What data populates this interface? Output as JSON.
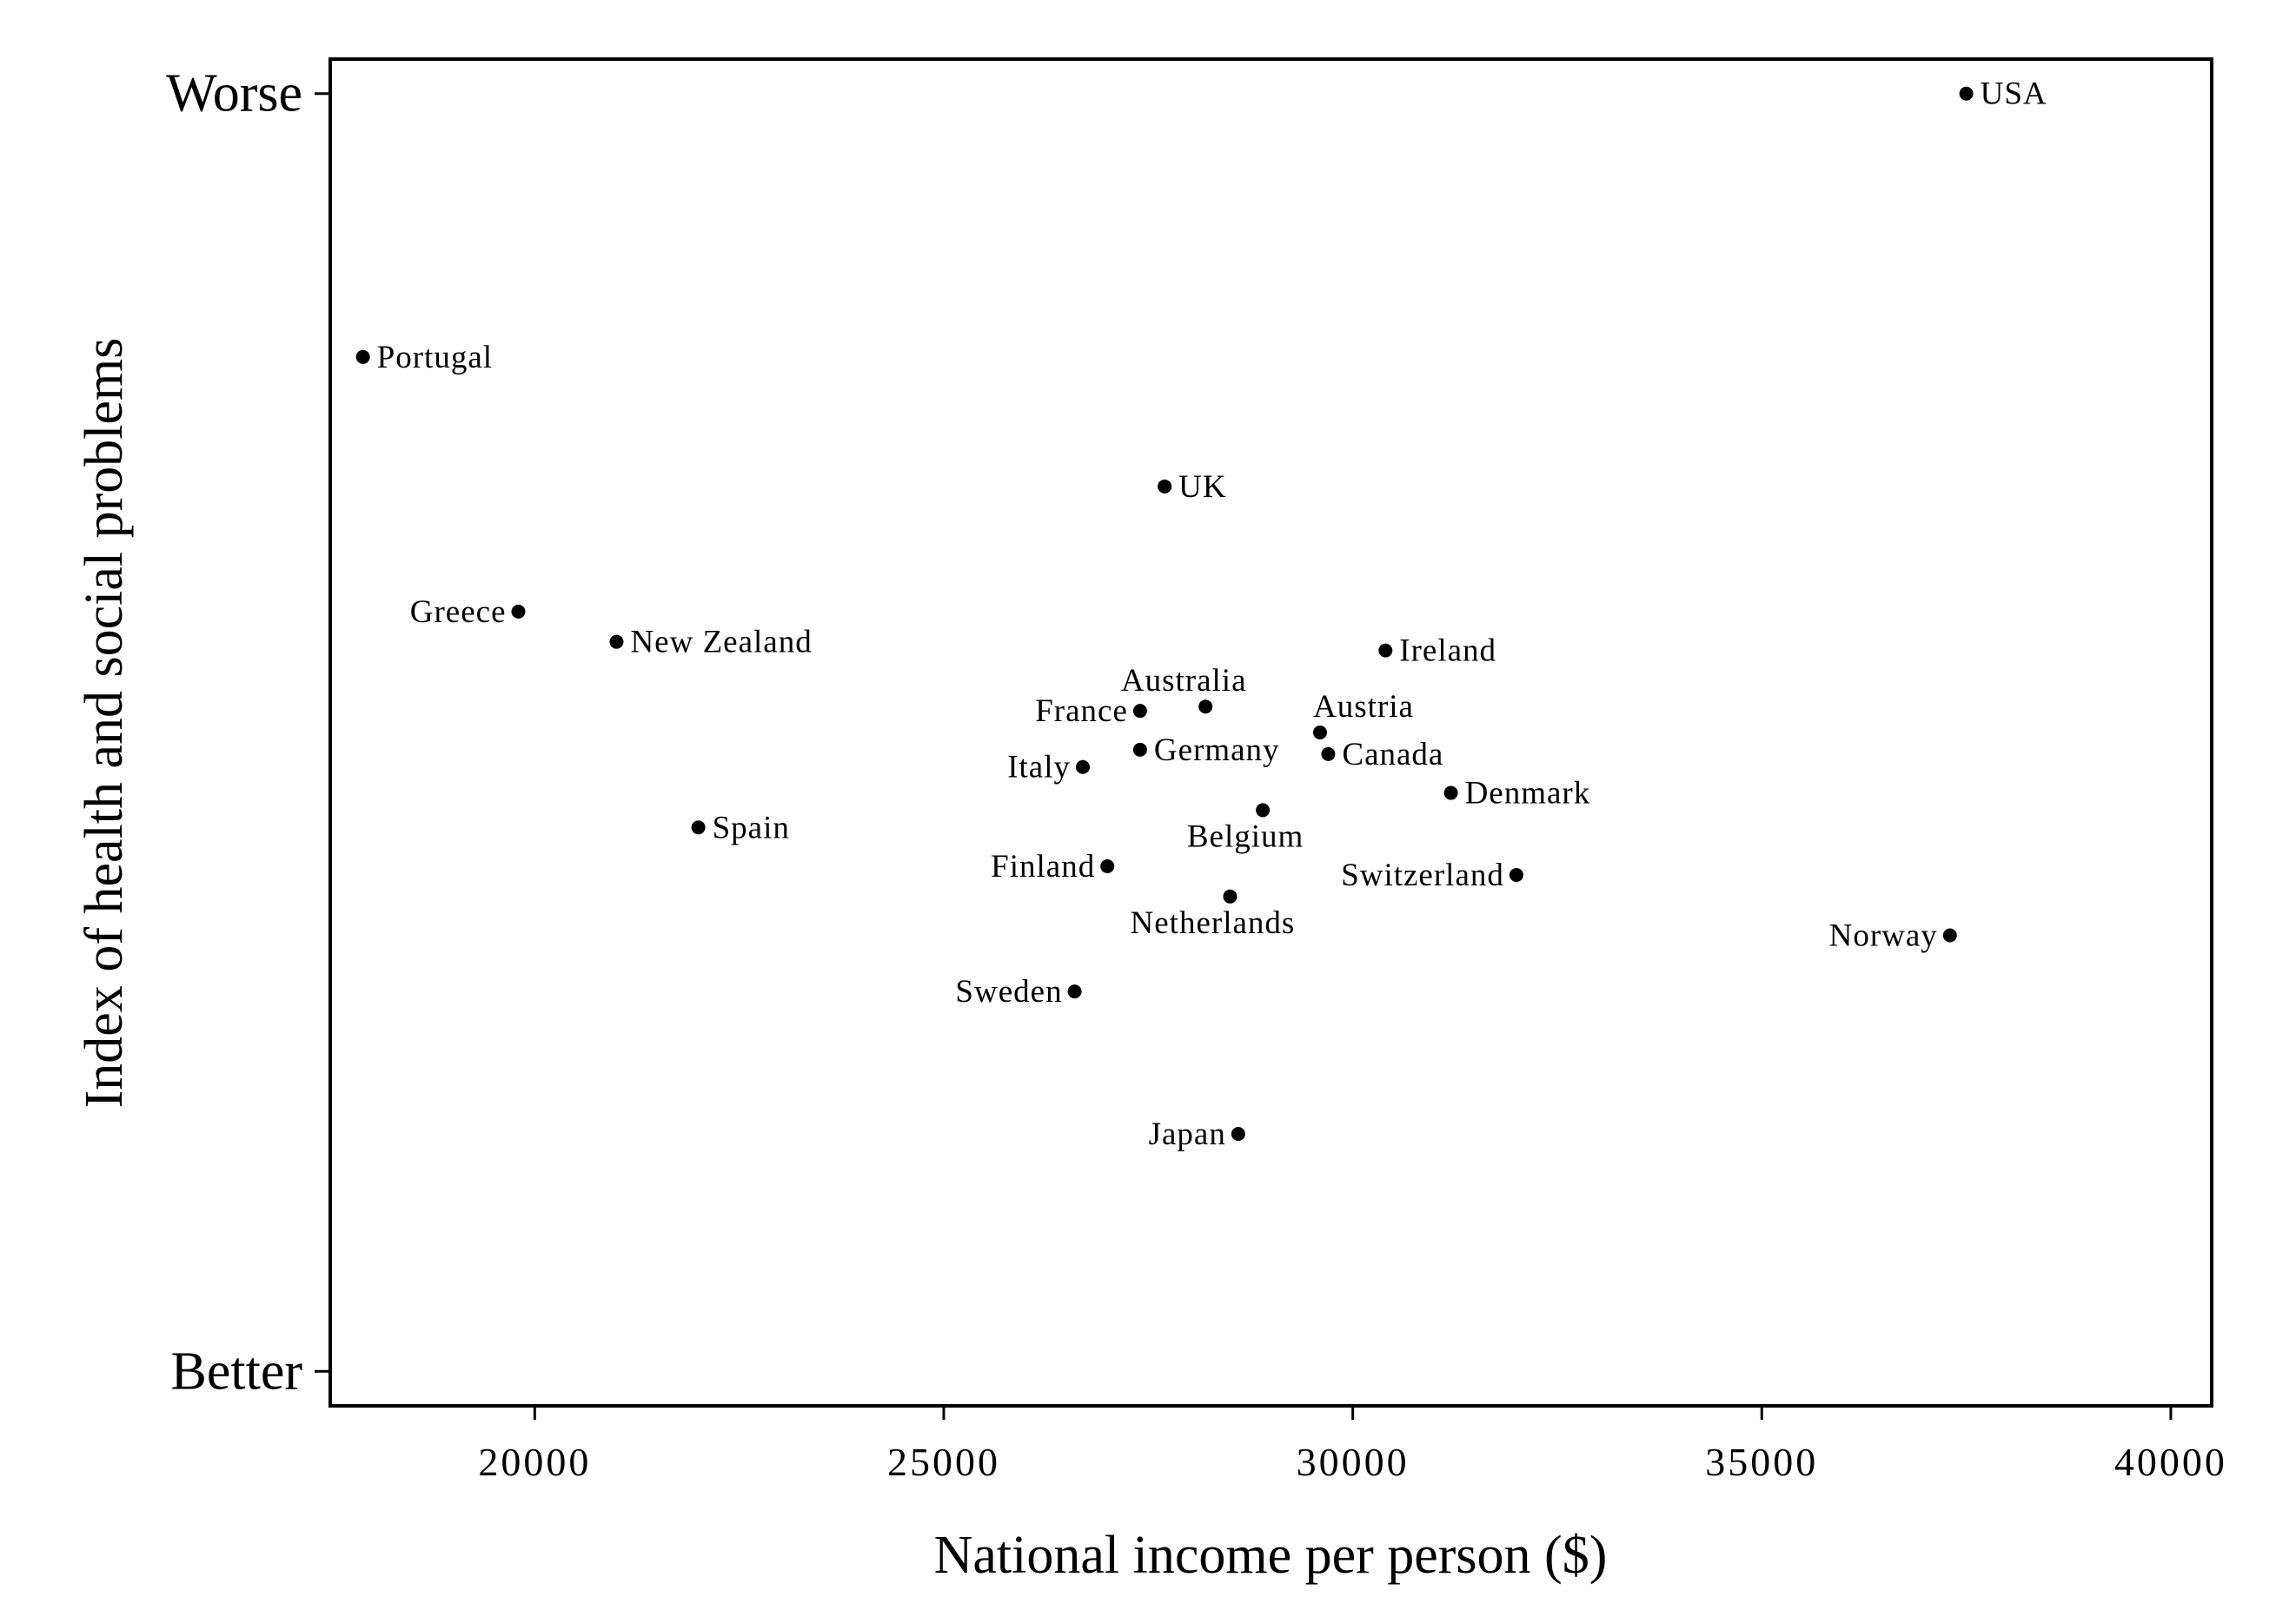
{
  "chart_data": {
    "type": "scatter",
    "xlabel": "National income per person ($)",
    "ylabel": "Index of health and social problems",
    "xlim": [
      17500,
      40500
    ],
    "ylim": [
      -1.62,
      1.5
    ],
    "x_ticks": [
      20000,
      25000,
      30000,
      35000,
      40000
    ],
    "x_tick_labels": [
      "20000",
      "25000",
      "30000",
      "35000",
      "40000"
    ],
    "y_ticks": [
      {
        "value": 1.42,
        "label": "Worse"
      },
      {
        "value": -1.54,
        "label": "Better"
      }
    ],
    "grid": false,
    "points": [
      {
        "name": "USA",
        "x": 37500,
        "y": 1.42,
        "label_side": "right"
      },
      {
        "name": "Portugal",
        "x": 17900,
        "y": 0.81,
        "label_side": "right"
      },
      {
        "name": "UK",
        "x": 27700,
        "y": 0.51,
        "label_side": "right"
      },
      {
        "name": "Greece",
        "x": 19800,
        "y": 0.22,
        "label_side": "left"
      },
      {
        "name": "New Zealand",
        "x": 21000,
        "y": 0.15,
        "label_side": "right"
      },
      {
        "name": "Ireland",
        "x": 30400,
        "y": 0.13,
        "label_side": "right"
      },
      {
        "name": "Australia",
        "x": 28200,
        "y": 0.0,
        "label_side": "above"
      },
      {
        "name": "France",
        "x": 27400,
        "y": -0.01,
        "label_side": "left"
      },
      {
        "name": "Austria",
        "x": 29600,
        "y": -0.06,
        "label_side": "above-right"
      },
      {
        "name": "Germany",
        "x": 27400,
        "y": -0.1,
        "label_side": "right"
      },
      {
        "name": "Canada",
        "x": 29700,
        "y": -0.11,
        "label_side": "right"
      },
      {
        "name": "Italy",
        "x": 26700,
        "y": -0.14,
        "label_side": "left"
      },
      {
        "name": "Denmark",
        "x": 31200,
        "y": -0.2,
        "label_side": "right"
      },
      {
        "name": "Belgium",
        "x": 28900,
        "y": -0.24,
        "label_side": "below-left"
      },
      {
        "name": "Spain",
        "x": 22000,
        "y": -0.28,
        "label_side": "right"
      },
      {
        "name": "Finland",
        "x": 27000,
        "y": -0.37,
        "label_side": "left"
      },
      {
        "name": "Switzerland",
        "x": 32000,
        "y": -0.39,
        "label_side": "left"
      },
      {
        "name": "Netherlands",
        "x": 28500,
        "y": -0.44,
        "label_side": "below-left"
      },
      {
        "name": "Norway",
        "x": 37300,
        "y": -0.53,
        "label_side": "left"
      },
      {
        "name": "Sweden",
        "x": 26600,
        "y": -0.66,
        "label_side": "left"
      },
      {
        "name": "Japan",
        "x": 28600,
        "y": -0.99,
        "label_side": "left"
      }
    ]
  }
}
